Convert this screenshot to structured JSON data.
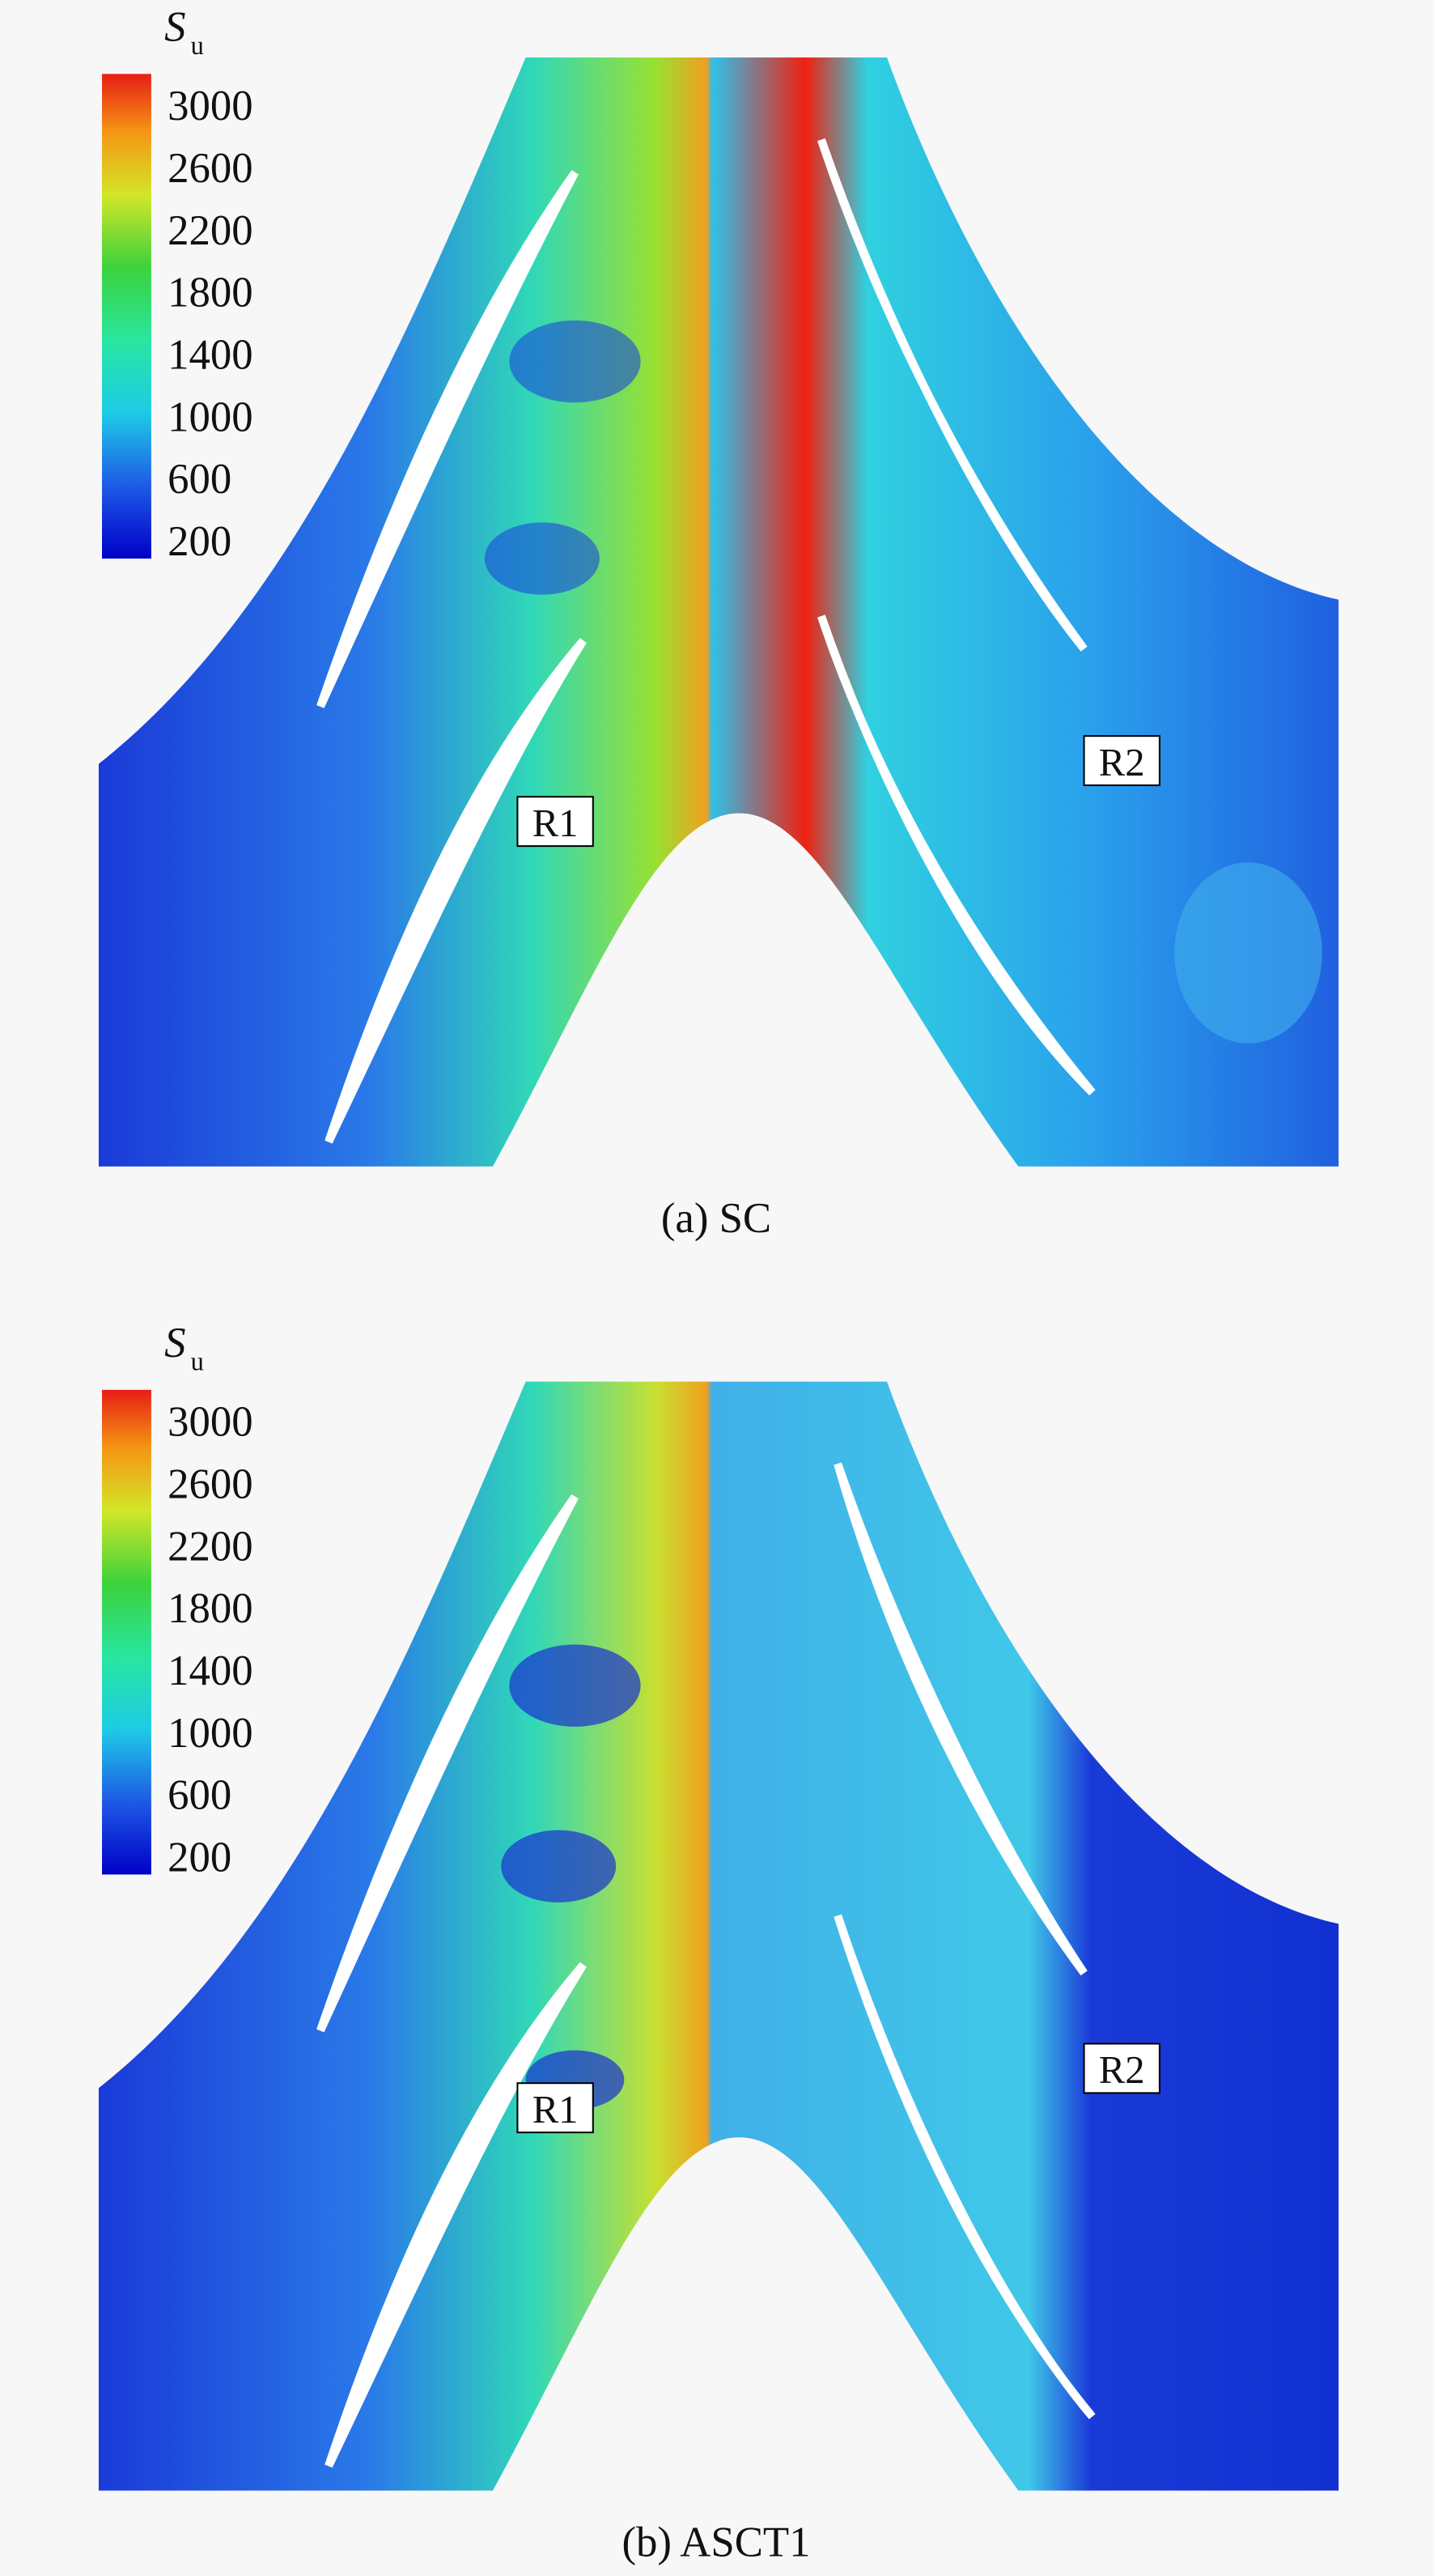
{
  "panels": [
    {
      "colorbar": {
        "title": "S",
        "subscript": "u",
        "ticks": [
          3000,
          2600,
          2200,
          1800,
          1400,
          1000,
          600,
          200
        ]
      },
      "labels": [
        "R1",
        "R2"
      ],
      "caption": "(a) SC"
    },
    {
      "colorbar": {
        "title": "S",
        "subscript": "u",
        "ticks": [
          3000,
          2600,
          2200,
          1800,
          1400,
          1000,
          600,
          200
        ]
      },
      "labels": [
        "R1",
        "R2"
      ],
      "caption": "(b) ASCT1"
    }
  ]
}
